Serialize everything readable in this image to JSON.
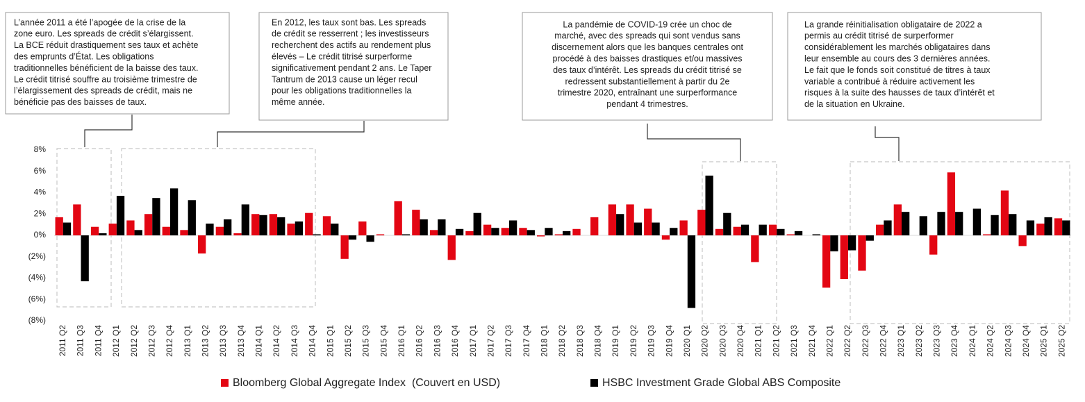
{
  "chart_data": {
    "type": "bar",
    "categories": [
      "2011 Q2",
      "2011 Q3",
      "2011 Q4",
      "2012 Q1",
      "2012 Q2",
      "2012 Q3",
      "2012 Q4",
      "2013 Q1",
      "2013 Q2",
      "2013 Q3",
      "2013 Q4",
      "2014 Q1",
      "2014 Q2",
      "2014 Q3",
      "2014 Q4",
      "2015 Q1",
      "2015 Q2",
      "2015 Q3",
      "2015 Q4",
      "2016 Q1",
      "2016 Q2",
      "2016 Q3",
      "2016 Q4",
      "2017 Q1",
      "2017 Q2",
      "2017 Q3",
      "2017 Q4",
      "2018 Q1",
      "2018 Q2",
      "2018 Q3",
      "2018 Q4",
      "2019 Q1",
      "2019 Q2",
      "2019 Q3",
      "2019 Q4",
      "2020 Q1",
      "2020 Q2",
      "2020 Q3",
      "2020 Q4",
      "2021 Q1",
      "2021 Q2",
      "2021 Q3",
      "2021 Q4",
      "2022 Q1",
      "2022 Q2",
      "2022 Q3",
      "2022 Q4",
      "2023 Q1",
      "2023 Q2",
      "2023 Q3",
      "2023 Q4",
      "2024 Q1",
      "2024 Q2",
      "2024 Q3",
      "2024 Q4",
      "2025 Q1",
      "2025 Q2"
    ],
    "series": [
      {
        "name": "Bloomberg Global Aggregate Index  (Couvert en USD)",
        "color": "#e30613",
        "values": [
          1.7,
          2.9,
          0.8,
          1.1,
          1.4,
          2.0,
          0.8,
          0.5,
          -1.7,
          0.8,
          0.2,
          2.0,
          2.0,
          1.1,
          2.1,
          1.8,
          -2.2,
          1.3,
          0.1,
          3.2,
          2.4,
          0.5,
          -2.3,
          0.4,
          1.0,
          0.7,
          0.7,
          -0.1,
          0.1,
          0.6,
          1.7,
          2.9,
          2.9,
          2.5,
          -0.4,
          1.4,
          2.4,
          0.6,
          0.8,
          -2.5,
          1.0,
          0.1,
          0.0,
          -4.9,
          -4.1,
          -3.3,
          1.0,
          2.9,
          0.0,
          -1.8,
          5.9,
          0.0,
          0.1,
          4.2,
          -1.0,
          1.1,
          1.6
        ]
      },
      {
        "name": "HSBC Investment Grade Global ABS Composite",
        "color": "#000000",
        "values": [
          1.2,
          -4.3,
          0.2,
          3.7,
          0.5,
          3.5,
          4.4,
          3.3,
          1.1,
          1.5,
          2.9,
          1.9,
          1.7,
          1.3,
          0.1,
          1.1,
          -0.4,
          -0.6,
          0.0,
          0.1,
          1.5,
          1.5,
          0.6,
          2.1,
          0.7,
          1.4,
          0.5,
          0.7,
          0.4,
          0.0,
          0.0,
          2.0,
          1.2,
          1.2,
          0.7,
          -6.8,
          5.6,
          2.1,
          1.0,
          1.0,
          0.6,
          0.4,
          0.1,
          -1.5,
          -1.4,
          -0.5,
          1.4,
          2.2,
          1.8,
          2.2,
          2.2,
          2.5,
          1.9,
          2.0,
          1.4,
          1.7,
          1.4
        ]
      }
    ],
    "ylim": [
      -8,
      8
    ],
    "yticks": [
      {
        "value": -8,
        "label": "(8%)"
      },
      {
        "value": -6,
        "label": "(6%)"
      },
      {
        "value": -4,
        "label": "(4%)"
      },
      {
        "value": -2,
        "label": "(2%)"
      },
      {
        "value": 0,
        "label": "0%"
      },
      {
        "value": 2,
        "label": "2%"
      },
      {
        "value": 4,
        "label": "4%"
      },
      {
        "value": 6,
        "label": "6%"
      },
      {
        "value": 8,
        "label": "8%"
      }
    ],
    "legend": "bottom",
    "annotations": [
      {
        "lines": [
          "L’année 2011 a été l’apogée de la crise de la",
          "zone euro. Les spreads de crédit s’élargissent.",
          "La BCE réduit drastiquement ses taux et achète",
          "des emprunts d’État. Les obligations",
          "traditionnelles bénéficient de la baisse des taux.",
          "Le crédit titrisé souffre au troisième trimestre de",
          "l’élargissement des spreads de crédit, mais ne",
          "bénéficie pas des baisses de taux."
        ]
      },
      {
        "lines": [
          "En 2012, les taux sont bas. Les spreads",
          "de crédit se resserrent ; les investisseurs",
          "recherchent des actifs au rendement plus",
          "élevés – Le crédit titrisé surperforme",
          "significativement pendant 2 ans. Le Taper",
          "Tantrum de 2013 cause un léger recul",
          "pour les obligations traditionnelles la",
          "même année."
        ]
      },
      {
        "lines": [
          "La pandémie de COVID-19 crée un choc de",
          "marché, avec des spreads qui sont vendus sans",
          "discernement alors que les banques centrales ont",
          "procédé à des baisses drastiques et/ou massives",
          "des taux d’intérêt. Les spreads du crédit titrisé se",
          "redressent substantiellement à partir du 2e",
          "trimestre 2020, entraînant une surperformance",
          "pendant 4 trimestres."
        ]
      },
      {
        "lines": [
          "La grande réinitialisation obligataire de 2022 a",
          "permis au crédit titrisé de surperformer",
          "considérablement les marchés obligataires dans",
          "leur ensemble au cours des 3 dernières années.",
          "Le fait que le fonds soit constitué de titres à taux",
          "variable a contribué à réduire activement les",
          "risques à la suite des hausses de taux d’intérêt et",
          "de la situation en Ukraine."
        ]
      }
    ]
  }
}
